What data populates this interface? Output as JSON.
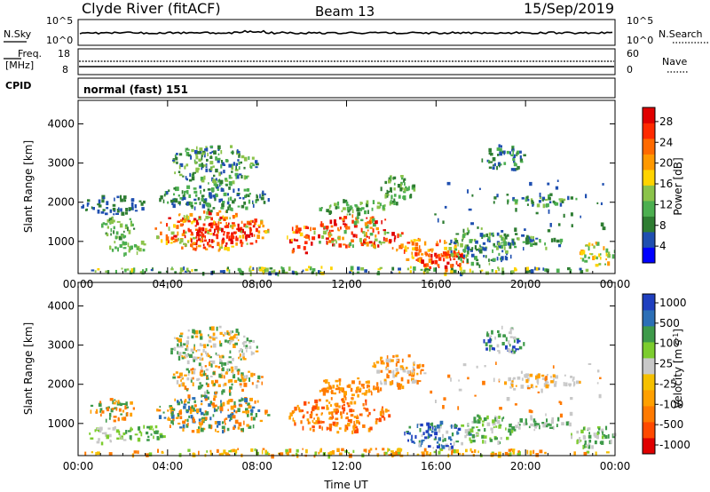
{
  "header": {
    "station": "Clyde River (fitACF)",
    "beam": "Beam 13",
    "date": "15/Sep/2019"
  },
  "summary_panels": {
    "nsky": {
      "label": "N.Sky",
      "ticks": [
        "10^5",
        "10^0"
      ]
    },
    "nsearch": {
      "label": "N.Search",
      "ticks": [
        "10^5",
        "10^0"
      ]
    },
    "freq": {
      "label_line1": "Freq.",
      "label_line2": "[MHz]",
      "ticks": [
        "18",
        "8"
      ]
    },
    "nave": {
      "label": "Nave",
      "ticks": [
        "60",
        "0"
      ]
    },
    "cpid": {
      "label": "CPID",
      "value": "normal (fast) 151"
    }
  },
  "chart_data": [
    {
      "type": "heatmap",
      "name": "power",
      "ylabel": "Slant Range [km]",
      "xlabel": "",
      "x_ticks": [
        "00:00",
        "04:00",
        "08:00",
        "12:00",
        "16:00",
        "20:00",
        "00:00"
      ],
      "xlim_hours": [
        0,
        24
      ],
      "y_ticks": [
        1000,
        2000,
        3000,
        4000
      ],
      "ylim": [
        180,
        4600
      ],
      "colorbar": {
        "label": "Power [dB]",
        "ticks": [
          "28",
          "24",
          "20",
          "16",
          "12",
          "8",
          "4"
        ],
        "colors": [
          "#0000ff",
          "#1f4fb0",
          "#2e7d32",
          "#4caf50",
          "#8bc34a",
          "#ffd400",
          "#ff9900",
          "#ff6a00",
          "#ff2a00",
          "#e00000"
        ]
      },
      "blobs": [
        {
          "h0": 0.05,
          "h1": 24.0,
          "r0": 200,
          "r1": 380,
          "c": [
            1,
            2,
            3,
            4,
            5
          ]
        },
        {
          "h0": 1.0,
          "h1": 2.5,
          "r0": 1100,
          "r1": 1700,
          "c": [
            3,
            4,
            2
          ]
        },
        {
          "h0": 1.3,
          "h1": 3.0,
          "r0": 700,
          "r1": 1100,
          "c": [
            3,
            4
          ]
        },
        {
          "h0": 0.1,
          "h1": 3.0,
          "r0": 1700,
          "r1": 2200,
          "c": [
            1,
            2
          ]
        },
        {
          "h0": 3.3,
          "h1": 8.5,
          "r0": 800,
          "r1": 1800,
          "c": [
            6,
            7,
            8,
            9,
            5,
            4
          ]
        },
        {
          "h0": 4.5,
          "h1": 8.0,
          "r0": 1000,
          "r1": 1500,
          "c": [
            8,
            9
          ]
        },
        {
          "h0": 3.5,
          "h1": 8.5,
          "r0": 1800,
          "r1": 2500,
          "c": [
            1,
            2,
            3
          ]
        },
        {
          "h0": 4.0,
          "h1": 8.0,
          "r0": 2500,
          "r1": 3500,
          "c": [
            1,
            2,
            3,
            4
          ]
        },
        {
          "h0": 9.3,
          "h1": 10.5,
          "r0": 700,
          "r1": 1500,
          "c": [
            7,
            8,
            9,
            5
          ]
        },
        {
          "h0": 10.3,
          "h1": 14.5,
          "r0": 850,
          "r1": 1700,
          "c": [
            6,
            7,
            8,
            9,
            4,
            3
          ]
        },
        {
          "h0": 10.5,
          "h1": 13.8,
          "r0": 1700,
          "r1": 2100,
          "c": [
            3,
            4,
            2
          ]
        },
        {
          "h0": 13.5,
          "h1": 15.0,
          "r0": 1950,
          "r1": 2800,
          "c": [
            2,
            3,
            4
          ]
        },
        {
          "h0": 14.0,
          "h1": 17.0,
          "r0": 500,
          "r1": 1100,
          "c": [
            5,
            6,
            7,
            8
          ]
        },
        {
          "h0": 15.2,
          "h1": 17.5,
          "r0": 300,
          "r1": 800,
          "c": [
            7,
            8,
            9
          ]
        },
        {
          "h0": 16.5,
          "h1": 19.5,
          "r0": 400,
          "r1": 1400,
          "c": [
            1,
            2,
            3,
            4
          ]
        },
        {
          "h0": 18.0,
          "h1": 20.0,
          "r0": 2800,
          "r1": 3500,
          "c": [
            1,
            2,
            3
          ]
        },
        {
          "h0": 19.0,
          "h1": 22.3,
          "r0": 1950,
          "r1": 2250,
          "c": [
            1,
            2,
            3,
            4
          ]
        },
        {
          "h0": 18.5,
          "h1": 22.0,
          "r0": 850,
          "r1": 1200,
          "c": [
            1,
            2,
            3,
            4
          ]
        },
        {
          "h0": 22.3,
          "h1": 24.0,
          "r0": 400,
          "r1": 1000,
          "c": [
            3,
            4,
            5,
            6
          ]
        },
        {
          "h0": 15.5,
          "h1": 23.5,
          "r0": 1200,
          "r1": 2600,
          "c": [
            1,
            2
          ]
        }
      ]
    },
    {
      "type": "heatmap",
      "name": "velocity",
      "ylabel": "Slant Range [km]",
      "xlabel": "Time UT",
      "x_ticks": [
        "00:00",
        "04:00",
        "08:00",
        "12:00",
        "16:00",
        "20:00",
        "00:00"
      ],
      "xlim_hours": [
        0,
        24
      ],
      "y_ticks": [
        1000,
        2000,
        3000,
        4000
      ],
      "ylim": [
        180,
        4600
      ],
      "colorbar": {
        "label": "Velocity [m s^-1]",
        "ticks": [
          "1000",
          "500",
          "100",
          "25",
          "-25",
          "-100",
          "-500",
          "-1000"
        ],
        "colors": [
          "#e00000",
          "#ff4a00",
          "#ff7a00",
          "#ffa000",
          "#f5c000",
          "#c8c8c8",
          "#7ccc2e",
          "#3e9a4a",
          "#2c6fb6",
          "#1f3fbf"
        ]
      },
      "blobs": [
        {
          "h0": 0.05,
          "h1": 24.0,
          "r0": 200,
          "r1": 380,
          "c": [
            4,
            3,
            6,
            2
          ]
        },
        {
          "h0": 0.5,
          "h1": 2.5,
          "r0": 1100,
          "r1": 1700,
          "c": [
            2,
            3,
            7
          ]
        },
        {
          "h0": 0.3,
          "h1": 2.2,
          "r0": 500,
          "r1": 950,
          "c": [
            5,
            6
          ]
        },
        {
          "h0": 2.0,
          "h1": 4.0,
          "r0": 600,
          "r1": 1000,
          "c": [
            7,
            6
          ]
        },
        {
          "h0": 3.4,
          "h1": 8.5,
          "r0": 800,
          "r1": 1800,
          "c": [
            2,
            3,
            7,
            8
          ]
        },
        {
          "h0": 4.0,
          "h1": 8.3,
          "r0": 1800,
          "r1": 2500,
          "c": [
            2,
            3,
            5,
            7
          ]
        },
        {
          "h0": 4.0,
          "h1": 8.0,
          "r0": 2500,
          "r1": 3500,
          "c": [
            5,
            3,
            7
          ]
        },
        {
          "h0": 9.3,
          "h1": 14.0,
          "r0": 800,
          "r1": 1700,
          "c": [
            2,
            3,
            1
          ]
        },
        {
          "h0": 10.5,
          "h1": 13.5,
          "r0": 1700,
          "r1": 2200,
          "c": [
            2,
            3
          ]
        },
        {
          "h0": 13.0,
          "h1": 15.5,
          "r0": 1950,
          "r1": 2800,
          "c": [
            5,
            3,
            2
          ]
        },
        {
          "h0": 14.5,
          "h1": 17.5,
          "r0": 400,
          "r1": 1100,
          "c": [
            7,
            8,
            5,
            9
          ]
        },
        {
          "h0": 17.0,
          "h1": 19.5,
          "r0": 500,
          "r1": 1300,
          "c": [
            6,
            7,
            5
          ]
        },
        {
          "h0": 18.0,
          "h1": 20.0,
          "r0": 2800,
          "r1": 3500,
          "c": [
            5,
            7,
            9
          ]
        },
        {
          "h0": 18.5,
          "h1": 22.5,
          "r0": 1950,
          "r1": 2300,
          "c": [
            5,
            5,
            3
          ]
        },
        {
          "h0": 19.0,
          "h1": 22.0,
          "r0": 850,
          "r1": 1200,
          "c": [
            7,
            5
          ]
        },
        {
          "h0": 22.0,
          "h1": 24.0,
          "r0": 400,
          "r1": 1000,
          "c": [
            5,
            7,
            6
          ]
        },
        {
          "h0": 15.5,
          "h1": 23.5,
          "r0": 1200,
          "r1": 2600,
          "c": [
            5,
            2
          ]
        }
      ]
    }
  ]
}
